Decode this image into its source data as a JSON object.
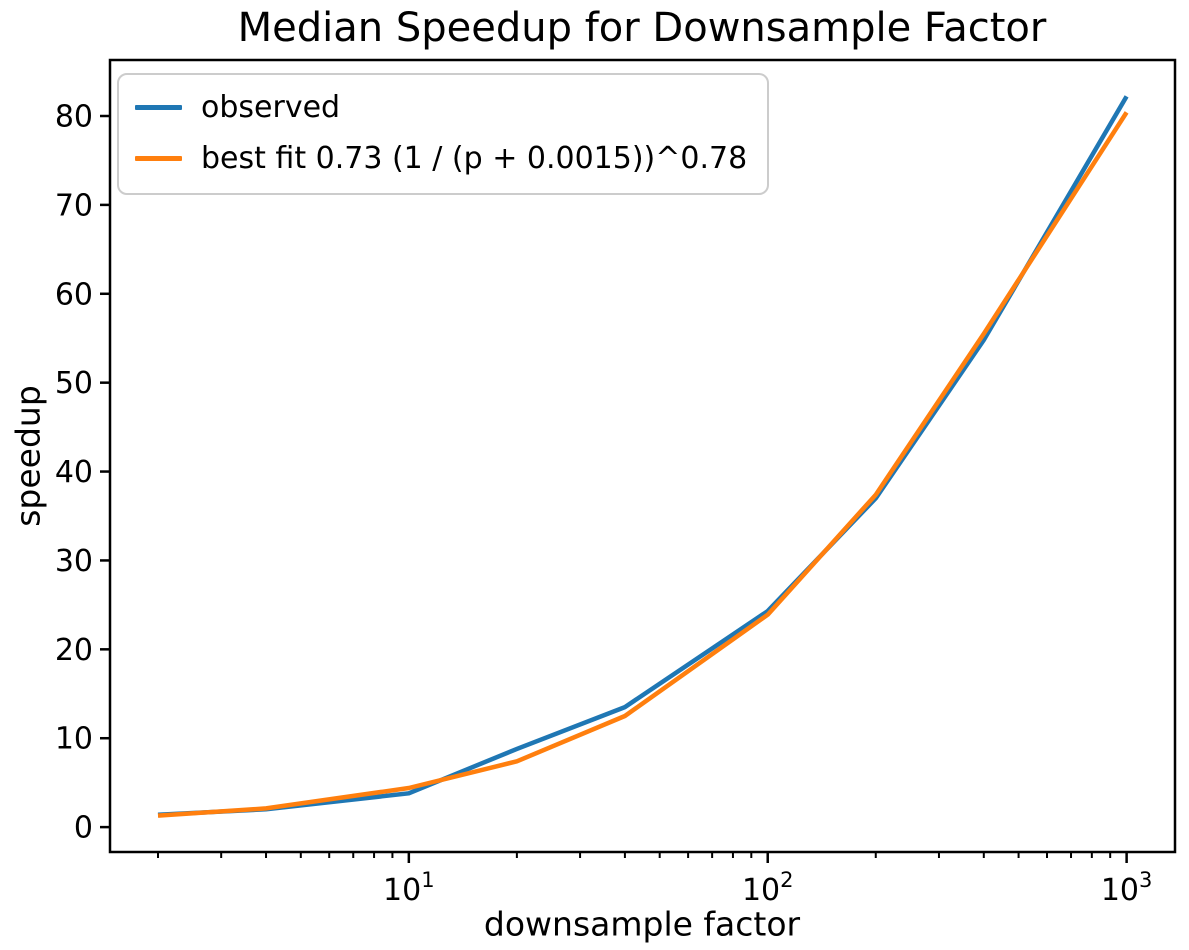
{
  "chart_data": {
    "type": "line",
    "title": "Median Speedup for Downsample Factor",
    "xlabel": "downsample factor",
    "ylabel": "speedup",
    "x_scale": "log",
    "grid": false,
    "x": [
      2,
      4,
      10,
      20,
      40,
      100,
      200,
      400,
      1000
    ],
    "series": [
      {
        "name": "observed",
        "color": "#1f77b4",
        "values": [
          1.4,
          2.0,
          3.8,
          8.8,
          13.5,
          24.3,
          37.0,
          54.8,
          82.2
        ]
      },
      {
        "name": "best fit 0.73 (1 / (p + 0.0015))^0.78",
        "color": "#ff7f0e",
        "values": [
          1.3,
          2.1,
          4.4,
          7.4,
          12.5,
          23.9,
          37.4,
          55.5,
          80.4
        ]
      }
    ],
    "xlim": [
      1.47,
      1364
    ],
    "ylim": [
      -2.8,
      86.3
    ],
    "y_ticks": [
      0,
      10,
      20,
      30,
      40,
      50,
      60,
      70,
      80
    ],
    "x_major_ticks": [
      10,
      100,
      1000
    ],
    "legend_position": "upper left"
  },
  "legend": {
    "items": [
      {
        "label": "observed",
        "color": "#1f77b4"
      },
      {
        "label": "best fit 0.73 (1 / (p + 0.0015))^0.78",
        "color": "#ff7f0e"
      }
    ]
  },
  "axis_color": "#000000"
}
